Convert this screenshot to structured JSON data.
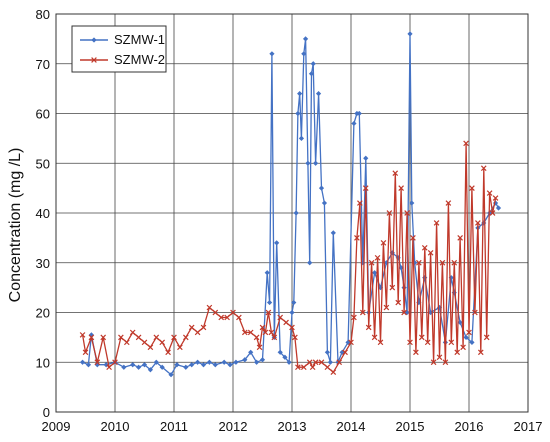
{
  "chart_data": {
    "type": "line",
    "title": "",
    "xlabel": "",
    "ylabel": "Concentration (mg /L)",
    "xlim": [
      2009,
      2017
    ],
    "ylim": [
      0,
      80
    ],
    "xticks": [
      2009,
      2010,
      2011,
      2012,
      2013,
      2014,
      2015,
      2016,
      2017
    ],
    "yticks": [
      0,
      10,
      20,
      30,
      40,
      50,
      60,
      70,
      80
    ],
    "grid": true,
    "legend_position": "top-left",
    "series": [
      {
        "name": "SZMW-1",
        "color": "#4472c4",
        "marker": "diamond",
        "points": [
          [
            2009.45,
            10
          ],
          [
            2009.55,
            9.5
          ],
          [
            2009.6,
            15.5
          ],
          [
            2009.7,
            9.5
          ],
          [
            2009.85,
            9.5
          ],
          [
            2010.0,
            10
          ],
          [
            2010.15,
            9
          ],
          [
            2010.3,
            9.5
          ],
          [
            2010.4,
            9
          ],
          [
            2010.5,
            9.5
          ],
          [
            2010.6,
            8.5
          ],
          [
            2010.7,
            10
          ],
          [
            2010.8,
            9
          ],
          [
            2010.95,
            7.5
          ],
          [
            2011.05,
            9.5
          ],
          [
            2011.2,
            9
          ],
          [
            2011.3,
            9.5
          ],
          [
            2011.4,
            10
          ],
          [
            2011.5,
            9.5
          ],
          [
            2011.6,
            10
          ],
          [
            2011.7,
            9.5
          ],
          [
            2011.85,
            10
          ],
          [
            2011.95,
            9.5
          ],
          [
            2012.05,
            10
          ],
          [
            2012.2,
            10.5
          ],
          [
            2012.3,
            12
          ],
          [
            2012.4,
            10
          ],
          [
            2012.5,
            10.5
          ],
          [
            2012.58,
            28
          ],
          [
            2012.62,
            22
          ],
          [
            2012.66,
            72
          ],
          [
            2012.7,
            15
          ],
          [
            2012.74,
            34
          ],
          [
            2012.8,
            12
          ],
          [
            2012.88,
            11
          ],
          [
            2012.95,
            10
          ],
          [
            2013.0,
            20
          ],
          [
            2013.03,
            22
          ],
          [
            2013.07,
            40
          ],
          [
            2013.1,
            60
          ],
          [
            2013.13,
            64
          ],
          [
            2013.16,
            55
          ],
          [
            2013.2,
            72
          ],
          [
            2013.23,
            75
          ],
          [
            2013.27,
            50
          ],
          [
            2013.3,
            30
          ],
          [
            2013.33,
            68
          ],
          [
            2013.36,
            70
          ],
          [
            2013.4,
            50
          ],
          [
            2013.45,
            64
          ],
          [
            2013.5,
            45
          ],
          [
            2013.55,
            42
          ],
          [
            2013.6,
            12
          ],
          [
            2013.65,
            10
          ],
          [
            2013.7,
            36
          ],
          [
            2013.78,
            10
          ],
          [
            2013.85,
            12
          ],
          [
            2013.95,
            14
          ],
          [
            2014.05,
            58
          ],
          [
            2014.1,
            60
          ],
          [
            2014.14,
            60
          ],
          [
            2014.2,
            30
          ],
          [
            2014.25,
            51
          ],
          [
            2014.3,
            20
          ],
          [
            2014.4,
            28
          ],
          [
            2014.5,
            25
          ],
          [
            2014.6,
            30
          ],
          [
            2014.7,
            32
          ],
          [
            2014.8,
            31
          ],
          [
            2014.85,
            29
          ],
          [
            2014.9,
            25
          ],
          [
            2014.95,
            20
          ],
          [
            2015.0,
            76
          ],
          [
            2015.03,
            42
          ],
          [
            2015.08,
            30
          ],
          [
            2015.15,
            22
          ],
          [
            2015.25,
            27
          ],
          [
            2015.35,
            20
          ],
          [
            2015.5,
            21
          ],
          [
            2015.6,
            14
          ],
          [
            2015.7,
            27
          ],
          [
            2015.75,
            24
          ],
          [
            2015.85,
            18
          ],
          [
            2015.95,
            15
          ],
          [
            2016.05,
            14
          ],
          [
            2016.15,
            37
          ],
          [
            2016.25,
            38
          ],
          [
            2016.35,
            40
          ],
          [
            2016.45,
            42
          ],
          [
            2016.5,
            41
          ]
        ]
      },
      {
        "name": "SZMW-2",
        "color": "#c0392b",
        "marker": "cross",
        "points": [
          [
            2009.45,
            15.5
          ],
          [
            2009.5,
            12
          ],
          [
            2009.6,
            15
          ],
          [
            2009.7,
            10
          ],
          [
            2009.8,
            15
          ],
          [
            2009.9,
            9
          ],
          [
            2010.0,
            10
          ],
          [
            2010.1,
            15
          ],
          [
            2010.2,
            14
          ],
          [
            2010.3,
            16
          ],
          [
            2010.4,
            15
          ],
          [
            2010.5,
            14
          ],
          [
            2010.6,
            13
          ],
          [
            2010.7,
            15
          ],
          [
            2010.8,
            14
          ],
          [
            2010.9,
            12
          ],
          [
            2011.0,
            15
          ],
          [
            2011.1,
            13
          ],
          [
            2011.2,
            15
          ],
          [
            2011.3,
            17
          ],
          [
            2011.4,
            16
          ],
          [
            2011.5,
            17
          ],
          [
            2011.6,
            21
          ],
          [
            2011.7,
            20
          ],
          [
            2011.8,
            19
          ],
          [
            2011.9,
            19
          ],
          [
            2012.0,
            20
          ],
          [
            2012.1,
            19
          ],
          [
            2012.2,
            16
          ],
          [
            2012.3,
            16
          ],
          [
            2012.4,
            15
          ],
          [
            2012.45,
            13
          ],
          [
            2012.5,
            17
          ],
          [
            2012.55,
            16
          ],
          [
            2012.6,
            20
          ],
          [
            2012.65,
            16
          ],
          [
            2012.7,
            15
          ],
          [
            2012.8,
            19
          ],
          [
            2012.9,
            18
          ],
          [
            2013.0,
            17
          ],
          [
            2013.05,
            15
          ],
          [
            2013.1,
            9
          ],
          [
            2013.2,
            9
          ],
          [
            2013.3,
            10
          ],
          [
            2013.35,
            9
          ],
          [
            2013.4,
            10
          ],
          [
            2013.5,
            10
          ],
          [
            2013.6,
            9
          ],
          [
            2013.7,
            8
          ],
          [
            2013.8,
            10
          ],
          [
            2013.9,
            12
          ],
          [
            2014.0,
            14
          ],
          [
            2014.05,
            19
          ],
          [
            2014.1,
            35
          ],
          [
            2014.15,
            42
          ],
          [
            2014.2,
            20
          ],
          [
            2014.25,
            45
          ],
          [
            2014.3,
            17
          ],
          [
            2014.35,
            30
          ],
          [
            2014.4,
            15
          ],
          [
            2014.45,
            31
          ],
          [
            2014.5,
            14
          ],
          [
            2014.55,
            34
          ],
          [
            2014.6,
            21
          ],
          [
            2014.65,
            40
          ],
          [
            2014.7,
            25
          ],
          [
            2014.75,
            48
          ],
          [
            2014.8,
            22
          ],
          [
            2014.85,
            45
          ],
          [
            2014.9,
            20
          ],
          [
            2014.95,
            40
          ],
          [
            2015.0,
            14
          ],
          [
            2015.05,
            35
          ],
          [
            2015.1,
            12
          ],
          [
            2015.15,
            30
          ],
          [
            2015.2,
            15
          ],
          [
            2015.25,
            33
          ],
          [
            2015.3,
            14
          ],
          [
            2015.35,
            32
          ],
          [
            2015.4,
            10
          ],
          [
            2015.45,
            38
          ],
          [
            2015.5,
            11
          ],
          [
            2015.55,
            30
          ],
          [
            2015.6,
            10
          ],
          [
            2015.65,
            42
          ],
          [
            2015.7,
            14
          ],
          [
            2015.75,
            30
          ],
          [
            2015.8,
            12
          ],
          [
            2015.85,
            35
          ],
          [
            2015.9,
            13
          ],
          [
            2015.95,
            54
          ],
          [
            2016.0,
            16
          ],
          [
            2016.05,
            45
          ],
          [
            2016.1,
            20
          ],
          [
            2016.15,
            38
          ],
          [
            2016.2,
            12
          ],
          [
            2016.25,
            49
          ],
          [
            2016.3,
            15
          ],
          [
            2016.35,
            44
          ],
          [
            2016.4,
            40
          ],
          [
            2016.45,
            43
          ]
        ]
      }
    ]
  }
}
